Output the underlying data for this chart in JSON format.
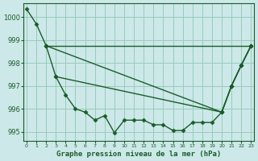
{
  "bg_color": "#cce8e8",
  "grid_color": "#99ccbb",
  "line_color": "#1a5c2a",
  "marker": "D",
  "markersize": 2.5,
  "linewidth": 1.0,
  "title": "Graphe pression niveau de la mer (hPa)",
  "ylabel_ticks": [
    995,
    996,
    997,
    998,
    999,
    1000
  ],
  "xlim": [
    -0.3,
    23.3
  ],
  "ylim": [
    994.6,
    1000.6
  ],
  "lines": [
    {
      "x": [
        0,
        1,
        2,
        3,
        4,
        5,
        6,
        7,
        8,
        9,
        10,
        11,
        12,
        13,
        14,
        15,
        16,
        17,
        18,
        19,
        20,
        21,
        22,
        23
      ],
      "y": [
        1000.35,
        999.7,
        998.75,
        997.4,
        996.6,
        996.0,
        995.85,
        995.5,
        995.7,
        994.95,
        995.5,
        995.5,
        995.5,
        995.3,
        995.3,
        995.05,
        995.05,
        995.4,
        995.4,
        995.4,
        995.85,
        997.0,
        997.9,
        998.75
      ]
    },
    {
      "x": [
        2,
        23
      ],
      "y": [
        998.75,
        998.75
      ]
    },
    {
      "x": [
        2,
        20,
        21,
        22,
        23
      ],
      "y": [
        998.75,
        995.85,
        997.0,
        997.9,
        998.75
      ]
    },
    {
      "x": [
        3,
        20,
        21,
        22,
        23
      ],
      "y": [
        997.4,
        995.85,
        997.0,
        997.9,
        998.75
      ]
    }
  ]
}
